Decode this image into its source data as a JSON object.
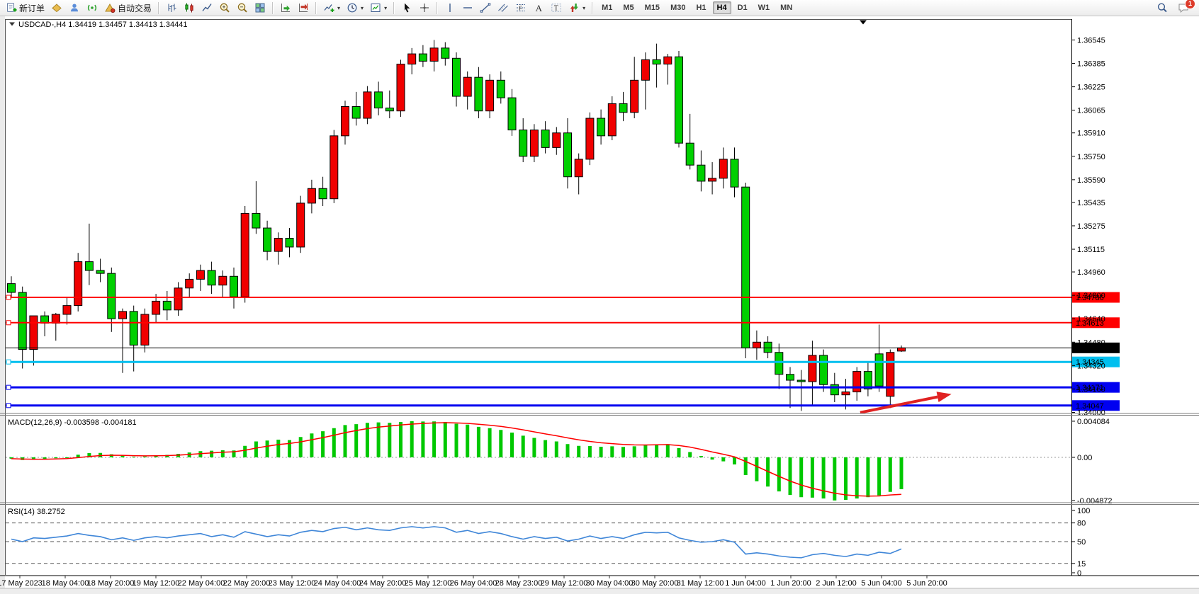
{
  "toolbar": {
    "new_order": "新订单",
    "auto_trade": "自动交易",
    "timeframes": [
      "M1",
      "M5",
      "M15",
      "M30",
      "H1",
      "H4",
      "D1",
      "W1",
      "MN"
    ],
    "active_timeframe": "H4",
    "notification_badge": "1"
  },
  "symbol_info": {
    "text": "USDCAD-,H4 1.34419 1.34457 1.34413 1.34441",
    "symbol": "USDCAD-",
    "period": "H4",
    "open": "1.34419",
    "high": "1.34457",
    "low": "1.34413",
    "close": "1.34441"
  },
  "chart_data": {
    "type": "candlestick",
    "symbol": "USDCAD-",
    "timeframe": "H4",
    "colors": {
      "bull_up": "#f00000",
      "bear_down": "#00d000",
      "wick": "#000000"
    },
    "candles": [
      [
        1.3488,
        1.3493,
        1.3478,
        1.3482
      ],
      [
        1.3482,
        1.3486,
        1.343,
        1.3443
      ],
      [
        1.3443,
        1.345,
        1.3432,
        1.3466
      ],
      [
        1.3466,
        1.3469,
        1.3452,
        1.3461
      ],
      [
        1.3461,
        1.3468,
        1.3449,
        1.3467
      ],
      [
        1.3467,
        1.3479,
        1.346,
        1.3473
      ],
      [
        1.3473,
        1.3509,
        1.3469,
        1.3503
      ],
      [
        1.3503,
        1.3529,
        1.3487,
        1.3497
      ],
      [
        1.3497,
        1.3505,
        1.3489,
        1.3495
      ],
      [
        1.3495,
        1.3499,
        1.3455,
        1.3464
      ],
      [
        1.3464,
        1.3471,
        1.3427,
        1.3469
      ],
      [
        1.3469,
        1.3473,
        1.3428,
        1.3446
      ],
      [
        1.3446,
        1.3471,
        1.3441,
        1.3467
      ],
      [
        1.3467,
        1.3481,
        1.3461,
        1.3476
      ],
      [
        1.3476,
        1.3483,
        1.3463,
        1.347
      ],
      [
        1.347,
        1.3489,
        1.3466,
        1.3485
      ],
      [
        1.3485,
        1.3495,
        1.3479,
        1.3491
      ],
      [
        1.3491,
        1.3501,
        1.3483,
        1.3497
      ],
      [
        1.3497,
        1.3503,
        1.3481,
        1.3487
      ],
      [
        1.3487,
        1.3497,
        1.3479,
        1.3493
      ],
      [
        1.3493,
        1.3499,
        1.3471,
        1.3479
      ],
      [
        1.3479,
        1.3541,
        1.3475,
        1.3536
      ],
      [
        1.3536,
        1.3558,
        1.3522,
        1.3526
      ],
      [
        1.3526,
        1.3531,
        1.3504,
        1.351
      ],
      [
        1.351,
        1.3523,
        1.3501,
        1.3519
      ],
      [
        1.3519,
        1.3526,
        1.3506,
        1.3513
      ],
      [
        1.3513,
        1.3548,
        1.3509,
        1.3543
      ],
      [
        1.3543,
        1.3559,
        1.3536,
        1.3553
      ],
      [
        1.3553,
        1.3561,
        1.3541,
        1.3546
      ],
      [
        1.3546,
        1.3593,
        1.3543,
        1.3589
      ],
      [
        1.3589,
        1.3613,
        1.3583,
        1.3609
      ],
      [
        1.3609,
        1.3619,
        1.3596,
        1.3601
      ],
      [
        1.3601,
        1.3623,
        1.3597,
        1.3619
      ],
      [
        1.3619,
        1.3626,
        1.3603,
        1.3608
      ],
      [
        1.3608,
        1.362,
        1.3601,
        1.3606
      ],
      [
        1.3606,
        1.3641,
        1.3602,
        1.3638
      ],
      [
        1.3638,
        1.3649,
        1.3631,
        1.3645
      ],
      [
        1.3645,
        1.3651,
        1.3636,
        1.364
      ],
      [
        1.364,
        1.36545,
        1.3633,
        1.3649
      ],
      [
        1.3649,
        1.3653,
        1.3637,
        1.3642
      ],
      [
        1.3642,
        1.3646,
        1.3609,
        1.3616
      ],
      [
        1.3616,
        1.3633,
        1.3607,
        1.3629
      ],
      [
        1.3629,
        1.3636,
        1.3601,
        1.3606
      ],
      [
        1.3606,
        1.3631,
        1.3601,
        1.3627
      ],
      [
        1.3627,
        1.3633,
        1.3611,
        1.3615
      ],
      [
        1.3615,
        1.3621,
        1.3589,
        1.3593
      ],
      [
        1.3593,
        1.3601,
        1.3571,
        1.3575
      ],
      [
        1.3575,
        1.3597,
        1.3571,
        1.3593
      ],
      [
        1.3593,
        1.3599,
        1.3577,
        1.3581
      ],
      [
        1.3581,
        1.3595,
        1.3576,
        1.3591
      ],
      [
        1.3591,
        1.3601,
        1.3553,
        1.3561
      ],
      [
        1.3561,
        1.3577,
        1.3549,
        1.3573
      ],
      [
        1.3573,
        1.3605,
        1.3569,
        1.3601
      ],
      [
        1.3601,
        1.3607,
        1.3583,
        1.3589
      ],
      [
        1.3589,
        1.3616,
        1.3586,
        1.3611
      ],
      [
        1.3611,
        1.3619,
        1.3599,
        1.3605
      ],
      [
        1.3605,
        1.3643,
        1.3601,
        1.3627
      ],
      [
        1.3627,
        1.3646,
        1.3607,
        1.3641
      ],
      [
        1.3641,
        1.3652,
        1.3622,
        1.3638
      ],
      [
        1.3638,
        1.3645,
        1.3624,
        1.3643
      ],
      [
        1.3643,
        1.3647,
        1.3581,
        1.3584
      ],
      [
        1.3584,
        1.3604,
        1.3566,
        1.3569
      ],
      [
        1.3569,
        1.3579,
        1.3551,
        1.3558
      ],
      [
        1.3558,
        1.3571,
        1.3549,
        1.356
      ],
      [
        1.356,
        1.3581,
        1.3553,
        1.3573
      ],
      [
        1.3573,
        1.3581,
        1.3547,
        1.3554
      ],
      [
        1.3554,
        1.3557,
        1.3437,
        1.3444
      ],
      [
        1.3444,
        1.3456,
        1.3436,
        1.3448
      ],
      [
        1.3448,
        1.3452,
        1.3437,
        1.3441
      ],
      [
        1.3441,
        1.3447,
        1.3416,
        1.3426
      ],
      [
        1.3426,
        1.3431,
        1.3403,
        1.3422
      ],
      [
        1.3422,
        1.3429,
        1.3401,
        1.3421
      ],
      [
        1.3421,
        1.3449,
        1.3405,
        1.3439
      ],
      [
        1.3439,
        1.3443,
        1.3414,
        1.3419
      ],
      [
        1.3419,
        1.3427,
        1.3407,
        1.3412
      ],
      [
        1.3412,
        1.3423,
        1.3402,
        1.3414
      ],
      [
        1.3414,
        1.3431,
        1.3408,
        1.3428
      ],
      [
        1.3428,
        1.3434,
        1.3411,
        1.3416
      ],
      [
        1.344,
        1.346,
        1.3414,
        1.3418
      ],
      [
        1.3411,
        1.3443,
        1.3403,
        1.3441
      ],
      [
        1.34419,
        1.34457,
        1.34413,
        1.34441
      ]
    ],
    "price_axis": {
      "min": 1.34,
      "max": 1.366,
      "ticks": [
        1.36545,
        1.36385,
        1.36225,
        1.36065,
        1.3591,
        1.3575,
        1.3559,
        1.35435,
        1.35275,
        1.35115,
        1.3496,
        1.348,
        1.3464,
        1.3448,
        1.3432,
        1.3416,
        1.34
      ]
    },
    "time_axis": {
      "labels": [
        "17 May 2023",
        "18 May 04:00",
        "18 May 20:00",
        "19 May 12:00",
        "22 May 04:00",
        "22 May 20:00",
        "23 May 12:00",
        "24 May 04:00",
        "24 May 20:00",
        "25 May 12:00",
        "26 May 04:00",
        "28 May 23:00",
        "29 May 12:00",
        "30 May 04:00",
        "30 May 20:00",
        "31 May 12:00",
        "1 Jun 04:00",
        "1 Jun 20:00",
        "2 Jun 12:00",
        "5 Jun 04:00",
        "5 Jun 20:00"
      ]
    },
    "objects": {
      "hlines": [
        {
          "price": 1.34786,
          "label": "1.34786",
          "color": "#ff0000",
          "thickness": 2
        },
        {
          "price": 1.34613,
          "label": "1.34613",
          "color": "#ff0000",
          "thickness": 2
        },
        {
          "price": 1.34345,
          "label": "1.34345",
          "color": "#00bfef",
          "thickness": 3
        },
        {
          "price": 1.34171,
          "label": "1.34171",
          "color": "#0000f0",
          "thickness": 3
        },
        {
          "price": 1.34047,
          "label": "1.34047",
          "color": "#0000f0",
          "thickness": 3
        }
      ],
      "bid_line": {
        "price": 1.34441,
        "label": "1.34441",
        "color": "#000000"
      },
      "arrow": {
        "from_bar": 76.3,
        "from_price": 1.33999,
        "to_bar": 84.5,
        "to_price": 1.34125,
        "color": "#e02222"
      }
    },
    "indicators": [
      {
        "name": "MACD",
        "params": "12,26,9",
        "label": "MACD(12,26,9) -0.003598 -0.004181",
        "value": -0.003598,
        "signal_value": -0.004181,
        "scale": {
          "label_values": [
            0.004084,
            0,
            -0.004872
          ],
          "labels": [
            "0.004084",
            "0.00",
            "-0.004872"
          ]
        },
        "colors": {
          "histogram": "#00c800",
          "signal": "#ff0000"
        },
        "histogram": [
          -0.00015,
          -0.0003,
          -0.00028,
          -0.0002,
          -0.0001,
          0,
          0.0003,
          0.00048,
          0.0005,
          0.00035,
          0.0002,
          8e-05,
          0.0001,
          0.0002,
          0.00028,
          0.0004,
          0.00055,
          0.0007,
          0.00075,
          0.0008,
          0.00078,
          0.0013,
          0.0018,
          0.0019,
          0.002,
          0.00195,
          0.0023,
          0.0027,
          0.00295,
          0.0033,
          0.00365,
          0.00375,
          0.0039,
          0.00395,
          0.0039,
          0.004,
          0.004084,
          0.00405,
          0.00406,
          0.004,
          0.0038,
          0.0037,
          0.00345,
          0.0033,
          0.0031,
          0.0028,
          0.00245,
          0.0022,
          0.00195,
          0.0018,
          0.0015,
          0.0013,
          0.00128,
          0.0012,
          0.00125,
          0.00118,
          0.00125,
          0.0014,
          0.00148,
          0.0015,
          0.00105,
          0.0006,
          0.00015,
          -0.00025,
          -0.00045,
          -0.0008,
          -0.002,
          -0.0027,
          -0.0033,
          -0.00385,
          -0.00425,
          -0.0045,
          -0.00455,
          -0.00465,
          -0.004872,
          -0.0048,
          -0.00465,
          -0.0045,
          -0.0043,
          -0.0039,
          -0.003598
        ],
        "signal": [
          -0.00015,
          -0.00019,
          -0.00021,
          -0.00021,
          -0.00018,
          -0.00014,
          -3e-05,
          0.0001,
          0.0002,
          0.00024,
          0.00023,
          0.00019,
          0.00017,
          0.00018,
          0.0002,
          0.00025,
          0.00033,
          0.00042,
          0.0005,
          0.00058,
          0.00063,
          0.0008,
          0.00105,
          0.00126,
          0.00145,
          0.00157,
          0.00175,
          0.00199,
          0.00223,
          0.0025,
          0.00279,
          0.00303,
          0.00325,
          0.00342,
          0.00354,
          0.00366,
          0.00376,
          0.00383,
          0.00389,
          0.00392,
          0.00389,
          0.00384,
          0.00374,
          0.00363,
          0.0035,
          0.00332,
          0.00311,
          0.00288,
          0.00265,
          0.00244,
          0.0022,
          0.00198,
          0.0018,
          0.00165,
          0.00155,
          0.00146,
          0.00141,
          0.0014,
          0.00142,
          0.00144,
          0.00134,
          0.00116,
          0.0009,
          0.00061,
          0.00035,
          6e-05,
          -0.00046,
          -0.00102,
          -0.00159,
          -0.00215,
          -0.00268,
          -0.00313,
          -0.00349,
          -0.00378,
          -0.00405,
          -0.00424,
          -0.00434,
          -0.00438,
          -0.00436,
          -0.00425,
          -0.004181
        ]
      },
      {
        "name": "RSI",
        "params": "14",
        "label": "RSI(14) 38.2752",
        "value": 38.2752,
        "levels": [
          80,
          50,
          15
        ],
        "scale": {
          "label_values": [
            100,
            80,
            50,
            15,
            0
          ],
          "labels": [
            "100",
            "80",
            "50",
            "15",
            "0"
          ]
        },
        "color": "#3f86d8",
        "values": [
          54,
          50,
          56,
          55,
          57,
          59,
          63,
          60,
          58,
          53,
          56,
          52,
          56,
          58,
          56,
          59,
          61,
          63,
          58,
          61,
          57,
          66,
          62,
          58,
          61,
          59,
          65,
          68,
          66,
          71,
          73,
          69,
          72,
          69,
          68,
          72,
          74,
          72,
          74,
          72,
          65,
          68,
          63,
          66,
          63,
          58,
          54,
          58,
          55,
          57,
          51,
          54,
          59,
          55,
          58,
          55,
          61,
          65,
          64,
          65,
          56,
          52,
          49,
          50,
          53,
          49,
          30,
          32,
          30,
          27,
          25,
          24,
          29,
          31,
          28,
          26,
          30,
          28,
          33,
          31,
          38.2752
        ]
      }
    ]
  }
}
